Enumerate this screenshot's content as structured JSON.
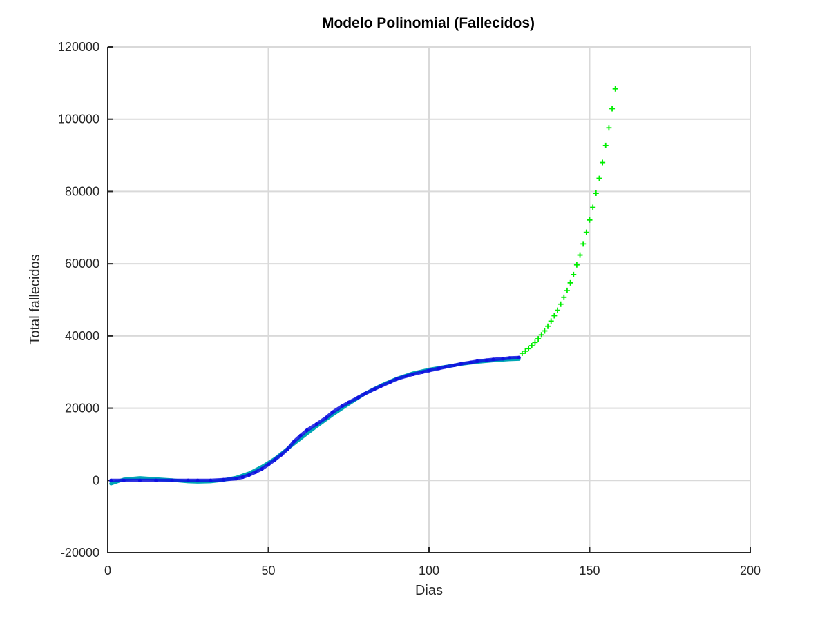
{
  "chart_data": {
    "type": "scatter",
    "title": "Modelo Polinomial (Fallecidos)",
    "xlabel": "Dias",
    "ylabel": "Total fallecidos",
    "xlim": [
      0,
      200
    ],
    "ylim": [
      -20000,
      120000
    ],
    "xticks": [
      0,
      50,
      100,
      150,
      200
    ],
    "yticks": [
      -20000,
      0,
      20000,
      40000,
      60000,
      80000,
      100000,
      120000
    ],
    "xtick_labels": [
      "0",
      "50",
      "100",
      "150",
      "200"
    ],
    "ytick_labels": [
      "-20000",
      "0",
      "20000",
      "40000",
      "60000",
      "80000",
      "100000",
      "120000"
    ],
    "grid": true,
    "series": [
      {
        "role": "polynomial-fit",
        "style": "line",
        "color": "#00a6b4",
        "x": [
          1,
          5,
          10,
          15,
          20,
          25,
          28,
          32,
          36,
          40,
          44,
          48,
          52,
          56,
          60,
          65,
          70,
          75,
          80,
          85,
          90,
          95,
          100,
          105,
          110,
          115,
          120,
          125,
          128
        ],
        "y": [
          -900,
          300,
          700,
          400,
          100,
          -300,
          -400,
          -300,
          100,
          800,
          2000,
          3800,
          6000,
          8800,
          11600,
          15000,
          18200,
          21200,
          24000,
          26300,
          28200,
          29700,
          30700,
          31500,
          32200,
          32800,
          33200,
          33500,
          33600
        ]
      },
      {
        "role": "observed-deaths",
        "style": "markers",
        "color": "#1010e0",
        "x": [
          1,
          5,
          10,
          15,
          20,
          25,
          28,
          32,
          36,
          40,
          42,
          44,
          46,
          48,
          50,
          52,
          54,
          56,
          58,
          60,
          62,
          65,
          68,
          70,
          73,
          75,
          78,
          80,
          83,
          85,
          88,
          90,
          93,
          95,
          98,
          100,
          103,
          105,
          108,
          110,
          113,
          115,
          118,
          120,
          123,
          125,
          128
        ],
        "y": [
          0,
          0,
          0,
          0,
          0,
          0,
          0,
          0,
          200,
          500,
          900,
          1500,
          2300,
          3200,
          4400,
          5700,
          7100,
          8700,
          10800,
          12400,
          13900,
          15600,
          17400,
          18900,
          20600,
          21600,
          23000,
          24000,
          25300,
          26100,
          27300,
          28100,
          28900,
          29400,
          30000,
          30400,
          31000,
          31400,
          31900,
          32300,
          32700,
          33000,
          33300,
          33500,
          33700,
          33900,
          34000
        ]
      },
      {
        "role": "projection",
        "style": "plus-markers",
        "color": "#00ee00",
        "x": [
          129,
          130,
          131,
          132,
          133,
          134,
          135,
          136,
          137,
          138,
          139,
          140,
          141,
          142,
          143,
          144,
          145,
          146,
          147,
          148,
          149,
          150,
          151,
          152,
          153,
          154,
          155,
          156,
          157,
          158
        ],
        "y": [
          35200,
          35800,
          36500,
          37300,
          38200,
          39200,
          40300,
          41400,
          42700,
          44100,
          45600,
          47100,
          48800,
          50700,
          52600,
          54700,
          57000,
          59700,
          62400,
          65500,
          68700,
          72100,
          75600,
          79500,
          83600,
          88000,
          92700,
          97600,
          102900,
          108400
        ]
      }
    ]
  }
}
